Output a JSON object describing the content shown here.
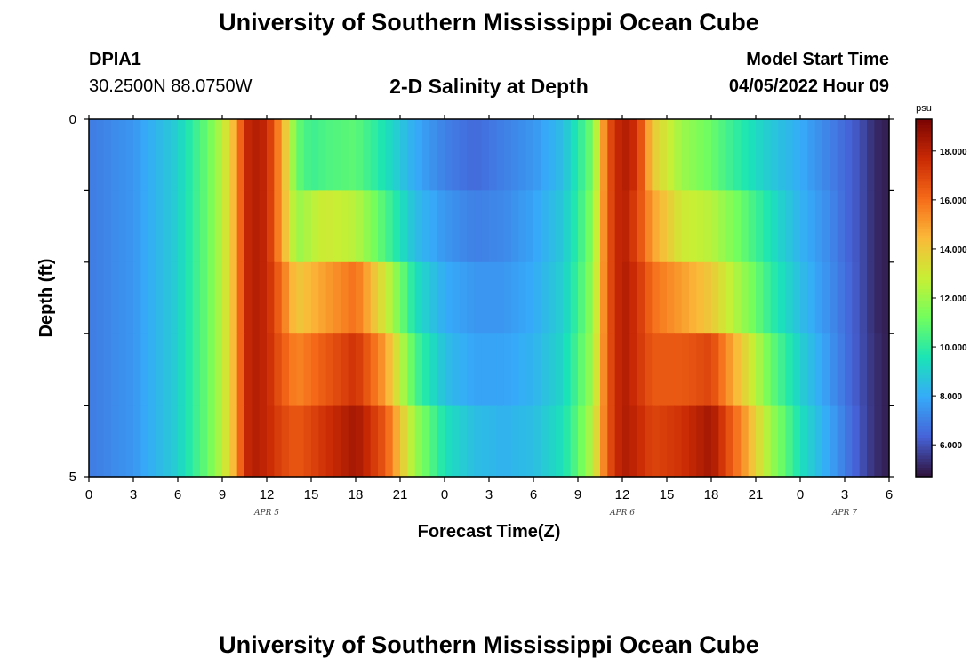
{
  "header": {
    "title": "University of Southern Mississippi Ocean Cube",
    "station_id": "DPIA1",
    "station_coords": "30.2500N  88.0750W",
    "chart_title": "2-D Salinity at Depth",
    "model_label": "Model Start Time",
    "model_time": "04/05/2022 Hour 09"
  },
  "footer": {
    "title": "University of Southern Mississippi Ocean Cube"
  },
  "chart_data": {
    "type": "heatmap",
    "title": "2-D Salinity at Depth",
    "xlabel": "Forecast Time(Z)",
    "ylabel": "Depth (ft)",
    "ylim": [
      0,
      5
    ],
    "y_ticks": [
      "0",
      "5"
    ],
    "x_ticks": [
      "0",
      "3",
      "6",
      "9",
      "12",
      "15",
      "18",
      "21",
      "0",
      "3",
      "6",
      "9",
      "12",
      "15",
      "18",
      "21",
      "0",
      "3",
      "6"
    ],
    "date_labels": [
      {
        "label": "APR 5",
        "hour": 12
      },
      {
        "label": "APR 6",
        "hour": 36
      },
      {
        "label": "APR 7",
        "hour": 51
      }
    ],
    "x_hours_range": [
      0,
      54
    ],
    "depth_layers": 5,
    "colorbar": {
      "unit": "psu",
      "range": [
        4.7,
        19.3
      ],
      "ticks": [
        "6.000",
        "8.000",
        "10.000",
        "12.000",
        "14.000",
        "16.000",
        "18.000"
      ],
      "colormap": [
        "#30123b",
        "#4662d7",
        "#36aaf9",
        "#1ae4b6",
        "#72fe5e",
        "#c8ef34",
        "#faba39",
        "#f66b19",
        "#ca2a04",
        "#7a0403"
      ]
    },
    "series": [
      {
        "name": "0-1 ft",
        "hours": [
          0,
          3,
          6,
          8,
          9,
          10,
          10.5,
          11,
          12,
          13,
          14,
          15,
          16,
          18,
          20,
          22,
          24,
          26,
          28,
          30,
          32,
          33,
          34,
          35,
          36,
          37,
          38,
          40,
          42,
          44,
          46,
          48,
          50,
          51,
          52,
          53,
          54
        ],
        "values": [
          6.9,
          7.5,
          9.0,
          11.0,
          12.5,
          15.0,
          17.5,
          18.2,
          17.8,
          15.0,
          11.0,
          10.2,
          10.5,
          10.8,
          9.5,
          8.0,
          7.0,
          6.5,
          7.0,
          7.5,
          8.5,
          9.8,
          11.2,
          16.5,
          18.3,
          17.5,
          14.0,
          12.0,
          11.0,
          9.8,
          8.8,
          8.0,
          7.0,
          6.5,
          6.0,
          5.2,
          4.9
        ]
      },
      {
        "name": "1-2 ft",
        "hours": [
          0,
          3,
          6,
          8,
          9,
          10,
          10.5,
          11,
          12,
          13,
          14,
          15,
          16,
          18,
          20,
          22,
          24,
          26,
          28,
          30,
          32,
          33,
          34,
          35,
          36,
          37,
          38,
          40,
          42,
          44,
          46,
          48,
          50,
          51,
          52,
          53,
          54
        ],
        "values": [
          6.9,
          7.5,
          9.0,
          11.0,
          12.5,
          15.0,
          17.5,
          18.2,
          17.8,
          15.0,
          11.8,
          12.5,
          13.0,
          12.5,
          10.5,
          8.5,
          7.5,
          7.0,
          7.2,
          7.8,
          8.8,
          10.0,
          11.5,
          16.5,
          18.3,
          17.0,
          15.0,
          13.0,
          12.5,
          11.0,
          9.5,
          8.2,
          7.2,
          6.5,
          6.0,
          5.2,
          4.9
        ]
      },
      {
        "name": "2-3 ft",
        "hours": [
          0,
          3,
          6,
          8,
          9,
          10,
          10.5,
          11,
          12,
          13,
          14,
          15,
          16,
          18,
          20,
          22,
          24,
          26,
          28,
          30,
          32,
          33,
          34,
          35,
          36,
          37,
          38,
          40,
          42,
          44,
          46,
          48,
          50,
          51,
          52,
          53,
          54
        ],
        "values": [
          6.9,
          7.5,
          9.0,
          11.0,
          12.5,
          15.0,
          17.5,
          18.2,
          17.8,
          16.0,
          14.0,
          14.5,
          15.0,
          16.0,
          13.0,
          9.5,
          8.0,
          7.5,
          7.5,
          8.0,
          9.0,
          10.2,
          11.8,
          16.5,
          18.3,
          17.5,
          16.0,
          15.0,
          14.0,
          12.0,
          10.0,
          8.5,
          7.3,
          6.6,
          6.0,
          5.2,
          4.9
        ]
      },
      {
        "name": "3-4 ft",
        "hours": [
          0,
          3,
          6,
          8,
          9,
          10,
          10.5,
          11,
          12,
          13,
          14,
          15,
          16,
          18,
          20,
          22,
          24,
          26,
          28,
          30,
          32,
          33,
          34,
          35,
          36,
          37,
          38,
          40,
          42,
          44,
          46,
          48,
          50,
          51,
          52,
          53,
          54
        ],
        "values": [
          6.9,
          7.5,
          9.0,
          11.0,
          12.5,
          15.0,
          17.5,
          18.2,
          17.8,
          16.5,
          15.5,
          16.0,
          16.5,
          17.5,
          15.0,
          10.5,
          8.5,
          7.8,
          7.8,
          8.2,
          9.2,
          10.5,
          12.0,
          16.5,
          18.3,
          17.5,
          16.5,
          16.5,
          17.0,
          14.0,
          11.0,
          9.0,
          7.5,
          6.7,
          6.0,
          5.3,
          4.9
        ]
      },
      {
        "name": "4-5 ft",
        "hours": [
          0,
          3,
          6,
          8,
          9,
          10,
          10.5,
          11,
          12,
          13,
          14,
          15,
          16,
          18,
          20,
          22,
          24,
          26,
          28,
          30,
          32,
          33,
          34,
          35,
          36,
          37,
          38,
          40,
          42,
          44,
          46,
          48,
          50,
          51,
          52,
          53,
          54
        ],
        "values": [
          6.9,
          7.5,
          9.0,
          11.0,
          12.5,
          15.0,
          17.5,
          18.2,
          17.8,
          17.0,
          16.5,
          17.0,
          17.5,
          18.5,
          16.5,
          12.0,
          9.5,
          8.5,
          8.2,
          8.5,
          9.5,
          10.8,
          12.5,
          16.5,
          18.3,
          17.8,
          17.0,
          17.5,
          18.5,
          15.5,
          12.0,
          9.5,
          7.8,
          6.9,
          6.1,
          5.3,
          4.9
        ]
      }
    ]
  }
}
